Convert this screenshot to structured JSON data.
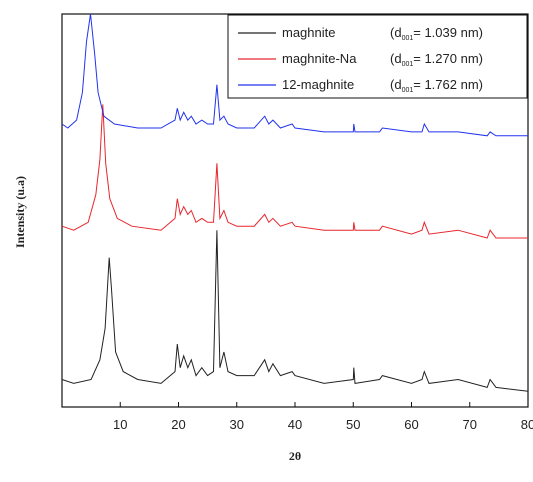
{
  "chart_data": {
    "type": "line",
    "xlabel": "2θ",
    "ylabel": "Intensity (u.a)",
    "xlim": [
      0,
      80
    ],
    "xticks": [
      10,
      20,
      30,
      40,
      50,
      60,
      70,
      80
    ],
    "grid": false,
    "legend_position": "top-right",
    "series": [
      {
        "name": "maghnite",
        "d_text": "(d",
        "d_sub": "001",
        "d_value": "= 1.039 nm)",
        "color": "#222222",
        "points": [
          [
            0,
            0.07
          ],
          [
            2,
            0.06
          ],
          [
            5,
            0.07
          ],
          [
            6.5,
            0.12
          ],
          [
            7.4,
            0.2
          ],
          [
            8.1,
            0.38
          ],
          [
            8.5,
            0.3
          ],
          [
            9.2,
            0.14
          ],
          [
            10.5,
            0.09
          ],
          [
            13,
            0.07
          ],
          [
            17,
            0.06
          ],
          [
            19.4,
            0.09
          ],
          [
            19.8,
            0.16
          ],
          [
            20.3,
            0.1
          ],
          [
            20.9,
            0.13
          ],
          [
            21.6,
            0.1
          ],
          [
            22.2,
            0.12
          ],
          [
            23,
            0.08
          ],
          [
            24,
            0.1
          ],
          [
            25,
            0.08
          ],
          [
            26,
            0.09
          ],
          [
            26.6,
            0.45
          ],
          [
            27.1,
            0.1
          ],
          [
            27.8,
            0.14
          ],
          [
            28.5,
            0.09
          ],
          [
            30,
            0.08
          ],
          [
            33,
            0.08
          ],
          [
            34.8,
            0.12
          ],
          [
            35.5,
            0.09
          ],
          [
            36.2,
            0.11
          ],
          [
            37.5,
            0.08
          ],
          [
            39.5,
            0.09
          ],
          [
            40,
            0.08
          ],
          [
            45,
            0.06
          ],
          [
            50,
            0.07
          ],
          [
            50.1,
            0.1
          ],
          [
            50.3,
            0.06
          ],
          [
            54.5,
            0.07
          ],
          [
            55,
            0.08
          ],
          [
            60,
            0.06
          ],
          [
            61.8,
            0.07
          ],
          [
            62.2,
            0.09
          ],
          [
            63,
            0.06
          ],
          [
            68,
            0.07
          ],
          [
            73,
            0.05
          ],
          [
            73.5,
            0.07
          ],
          [
            74.5,
            0.05
          ],
          [
            80,
            0.04
          ]
        ]
      },
      {
        "name": "maghnite-Na",
        "d_text": "(d",
        "d_sub": "001",
        "d_value": "= 1.270 nm)",
        "color": "#e8262c",
        "points": [
          [
            0,
            0.46
          ],
          [
            2,
            0.45
          ],
          [
            4.5,
            0.47
          ],
          [
            5.8,
            0.54
          ],
          [
            6.5,
            0.63
          ],
          [
            7.0,
            0.77
          ],
          [
            7.5,
            0.62
          ],
          [
            8.2,
            0.53
          ],
          [
            9.5,
            0.48
          ],
          [
            12,
            0.46
          ],
          [
            17,
            0.45
          ],
          [
            19.4,
            0.48
          ],
          [
            19.8,
            0.53
          ],
          [
            20.3,
            0.49
          ],
          [
            20.9,
            0.51
          ],
          [
            21.6,
            0.49
          ],
          [
            22.2,
            0.5
          ],
          [
            23,
            0.47
          ],
          [
            24,
            0.48
          ],
          [
            25,
            0.47
          ],
          [
            26,
            0.47
          ],
          [
            26.6,
            0.62
          ],
          [
            27.1,
            0.48
          ],
          [
            27.8,
            0.5
          ],
          [
            28.5,
            0.47
          ],
          [
            30,
            0.46
          ],
          [
            33,
            0.46
          ],
          [
            34.8,
            0.49
          ],
          [
            35.5,
            0.47
          ],
          [
            36.2,
            0.48
          ],
          [
            37.5,
            0.46
          ],
          [
            39.5,
            0.47
          ],
          [
            40,
            0.46
          ],
          [
            45,
            0.45
          ],
          [
            50,
            0.45
          ],
          [
            50.1,
            0.47
          ],
          [
            50.3,
            0.45
          ],
          [
            54.5,
            0.45
          ],
          [
            55,
            0.46
          ],
          [
            60,
            0.44
          ],
          [
            61.8,
            0.45
          ],
          [
            62.2,
            0.47
          ],
          [
            63,
            0.44
          ],
          [
            68,
            0.45
          ],
          [
            73,
            0.43
          ],
          [
            73.5,
            0.45
          ],
          [
            74.5,
            0.43
          ],
          [
            80,
            0.43
          ]
        ]
      },
      {
        "name": "12-maghnite",
        "d_text": "(d",
        "d_sub": "001",
        "d_value": "= 1.762 nm)",
        "color": "#2233ee",
        "points": [
          [
            0,
            0.72
          ],
          [
            1.0,
            0.71
          ],
          [
            2.5,
            0.73
          ],
          [
            3.5,
            0.8
          ],
          [
            4.2,
            0.93
          ],
          [
            4.9,
            1.0
          ],
          [
            5.6,
            0.9
          ],
          [
            6.2,
            0.8
          ],
          [
            7.2,
            0.74
          ],
          [
            9,
            0.72
          ],
          [
            13,
            0.71
          ],
          [
            17,
            0.71
          ],
          [
            19.4,
            0.73
          ],
          [
            19.8,
            0.76
          ],
          [
            20.3,
            0.73
          ],
          [
            20.9,
            0.75
          ],
          [
            21.6,
            0.73
          ],
          [
            22.2,
            0.74
          ],
          [
            23,
            0.72
          ],
          [
            24,
            0.73
          ],
          [
            25,
            0.72
          ],
          [
            26,
            0.72
          ],
          [
            26.6,
            0.82
          ],
          [
            27.1,
            0.73
          ],
          [
            27.8,
            0.74
          ],
          [
            28.5,
            0.72
          ],
          [
            30,
            0.71
          ],
          [
            33,
            0.71
          ],
          [
            34.8,
            0.74
          ],
          [
            35.5,
            0.72
          ],
          [
            36.2,
            0.73
          ],
          [
            37.5,
            0.71
          ],
          [
            39.5,
            0.72
          ],
          [
            40,
            0.71
          ],
          [
            45,
            0.7
          ],
          [
            50,
            0.7
          ],
          [
            50.1,
            0.72
          ],
          [
            50.3,
            0.7
          ],
          [
            54.5,
            0.7
          ],
          [
            55,
            0.71
          ],
          [
            60,
            0.7
          ],
          [
            61.8,
            0.7
          ],
          [
            62.2,
            0.72
          ],
          [
            63,
            0.7
          ],
          [
            68,
            0.7
          ],
          [
            73,
            0.69
          ],
          [
            73.5,
            0.7
          ],
          [
            74.5,
            0.69
          ],
          [
            80,
            0.69
          ]
        ]
      }
    ]
  }
}
